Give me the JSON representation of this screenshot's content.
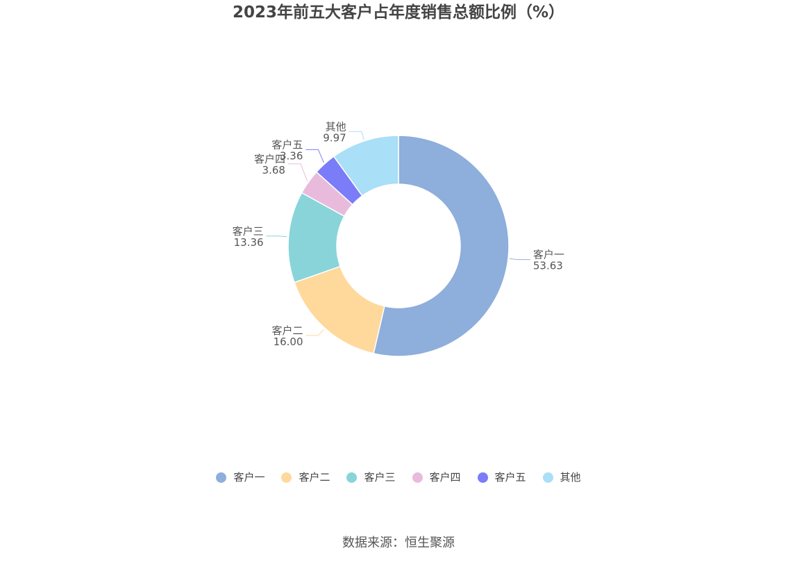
{
  "title": "2023年前五大客户占年度销售总额比例（%）",
  "source": "数据来源：恒生聚源",
  "chart_data": {
    "type": "pie",
    "variant": "donut",
    "title": "2023年前五大客户占年度销售总额比例（%）",
    "legend_position": "bottom-center",
    "slices": [
      {
        "label": "客户一",
        "value": 53.63,
        "value_text": "53.63",
        "color": "#8eaedb"
      },
      {
        "label": "客户二",
        "value": 16.0,
        "value_text": "16.00",
        "color": "#ffd89c"
      },
      {
        "label": "客户三",
        "value": 13.36,
        "value_text": "13.36",
        "color": "#88d4d9"
      },
      {
        "label": "客户四",
        "value": 3.68,
        "value_text": "3.68",
        "color": "#e8bbdc"
      },
      {
        "label": "客户五",
        "value": 3.36,
        "value_text": "3.36",
        "color": "#7b7cf7"
      },
      {
        "label": "其他",
        "value": 9.97,
        "value_text": "9.97",
        "color": "#a9dff7"
      }
    ]
  }
}
